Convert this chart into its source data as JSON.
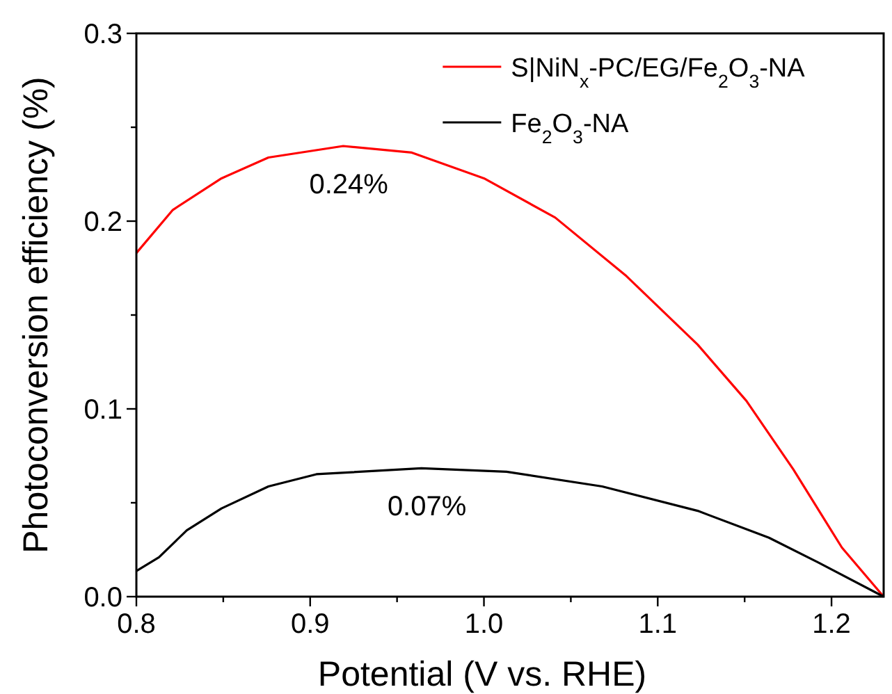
{
  "chart_data": {
    "type": "line",
    "xlabel": "Potential (V vs. RHE)",
    "ylabel": "Photoconversion efficiency (%)",
    "xlim": [
      0.8,
      1.23
    ],
    "ylim": [
      0,
      0.3
    ],
    "xticks": [
      {
        "value": 0.8,
        "label": "0.8"
      },
      {
        "value": 0.85,
        "label": null
      },
      {
        "value": 0.9,
        "label": "0.9"
      },
      {
        "value": 0.95,
        "label": null
      },
      {
        "value": 1.0,
        "label": "1.0"
      },
      {
        "value": 1.05,
        "label": null
      },
      {
        "value": 1.1,
        "label": "1.1"
      },
      {
        "value": 1.15,
        "label": null
      },
      {
        "value": 1.2,
        "label": "1.2"
      }
    ],
    "yticks": [
      {
        "value": 0,
        "label": "0.0"
      },
      {
        "value": 0.05,
        "label": null
      },
      {
        "value": 0.1,
        "label": "0.1"
      },
      {
        "value": 0.15,
        "label": null
      },
      {
        "value": 0.2,
        "label": "0.2"
      },
      {
        "value": 0.25,
        "label": null
      },
      {
        "value": 0.3,
        "label": "0.3"
      }
    ],
    "grid": false,
    "legend": "top right",
    "marker": "none",
    "line_style": "solid",
    "series": [
      {
        "name": "S|NiN$_{x}$-PC/EG/Fe$_{2}$O$_{3}$-NA",
        "color": "#ff0000",
        "x": [
          0.8,
          0.821,
          0.849,
          0.876,
          0.919,
          0.9585,
          1.0,
          1.041,
          1.082,
          1.123,
          1.151,
          1.178,
          1.206,
          1.23
        ],
        "values": [
          0.183,
          0.206,
          0.2228,
          0.2339,
          0.24,
          0.2365,
          0.2228,
          0.2019,
          0.1707,
          0.1342,
          0.1043,
          0.0678,
          0.0261,
          0
        ]
      },
      {
        "name": "Fe$_{2}$O$_{3}$-NA",
        "color": "#000000",
        "x": [
          0.8,
          0.813,
          0.829,
          0.849,
          0.876,
          0.9036,
          0.964,
          1.013,
          1.068,
          1.123,
          1.164,
          1.192,
          1.23
        ],
        "values": [
          0.0137,
          0.021,
          0.0353,
          0.047,
          0.0587,
          0.0652,
          0.0684,
          0.0665,
          0.0587,
          0.0457,
          0.0314,
          0.0184,
          0
        ]
      }
    ],
    "annotations": [
      {
        "text": "0.24%",
        "x": 0.919,
        "y": 0.24
      },
      {
        "text": "0.07%",
        "x": 0.964,
        "y": 0.0684
      }
    ]
  }
}
